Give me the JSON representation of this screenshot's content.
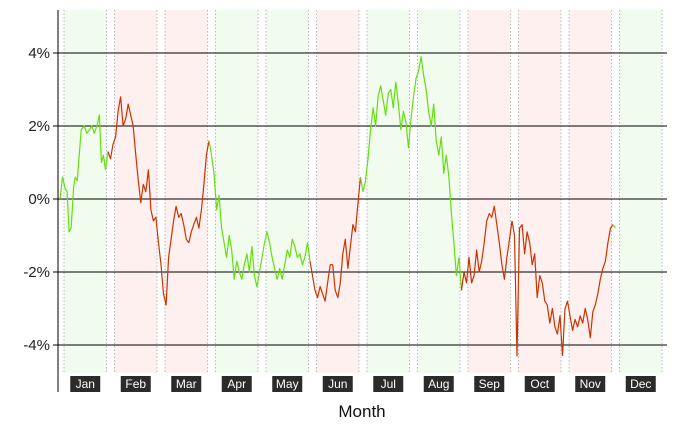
{
  "chart_data": {
    "type": "line",
    "title": "",
    "xlabel": "Month",
    "ylabel": "",
    "ylim": [
      -5.1,
      5.1
    ],
    "y_ticks": [
      -4,
      -2,
      0,
      2,
      4
    ],
    "y_tick_labels": [
      "-4%",
      "-2%",
      "0%",
      "2%",
      "4%"
    ],
    "grid": "horizontal at major ticks",
    "categories": [
      "Jan",
      "Feb",
      "Mar",
      "Apr",
      "May",
      "Jun",
      "Jul",
      "Aug",
      "Sep",
      "Oct",
      "Nov",
      "Dec"
    ],
    "month_trend": [
      "up",
      "down",
      "down",
      "up",
      "up",
      "down",
      "up",
      "up",
      "down",
      "down",
      "down",
      "up"
    ],
    "colors": {
      "up_line": "#66dd11",
      "down_line": "#cc3300",
      "up_band": "#f1fcef",
      "down_band": "#fdf0ef",
      "month_label_bg": "#2b2b2b"
    },
    "series": [
      {
        "values": [
          [
            0.0,
            0.0
          ],
          [
            0.05,
            0.6
          ],
          [
            0.1,
            0.3
          ],
          [
            0.14,
            0.2
          ],
          [
            0.18,
            -0.9
          ],
          [
            0.22,
            -0.8
          ],
          [
            0.27,
            0.3
          ],
          [
            0.3,
            0.6
          ],
          [
            0.34,
            0.5
          ],
          [
            0.38,
            1.2
          ],
          [
            0.42,
            1.9
          ],
          [
            0.48,
            2.0
          ],
          [
            0.53,
            1.8
          ],
          [
            0.58,
            1.9
          ],
          [
            0.63,
            2.0
          ],
          [
            0.68,
            1.8
          ],
          [
            0.73,
            2.0
          ],
          [
            0.78,
            2.3
          ],
          [
            0.82,
            1.0
          ],
          [
            0.86,
            1.2
          ],
          [
            0.9,
            0.8
          ],
          [
            0.95,
            1.3
          ],
          [
            1.0,
            1.1
          ],
          [
            1.05,
            1.5
          ],
          [
            1.1,
            1.7
          ],
          [
            1.15,
            2.4
          ],
          [
            1.2,
            2.8
          ],
          [
            1.25,
            2.0
          ],
          [
            1.3,
            2.2
          ],
          [
            1.35,
            2.6
          ],
          [
            1.4,
            2.3
          ],
          [
            1.45,
            2.0
          ],
          [
            1.5,
            1.2
          ],
          [
            1.55,
            0.5
          ],
          [
            1.6,
            -0.1
          ],
          [
            1.65,
            0.4
          ],
          [
            1.7,
            0.2
          ],
          [
            1.75,
            0.8
          ],
          [
            1.8,
            -0.3
          ],
          [
            1.85,
            -0.6
          ],
          [
            1.9,
            -0.5
          ],
          [
            1.95,
            -1.2
          ],
          [
            2.0,
            -1.8
          ],
          [
            2.05,
            -2.6
          ],
          [
            2.1,
            -2.9
          ],
          [
            2.15,
            -1.6
          ],
          [
            2.2,
            -1.1
          ],
          [
            2.25,
            -0.6
          ],
          [
            2.3,
            -0.2
          ],
          [
            2.35,
            -0.5
          ],
          [
            2.4,
            -0.4
          ],
          [
            2.45,
            -0.7
          ],
          [
            2.5,
            -1.1
          ],
          [
            2.55,
            -1.2
          ],
          [
            2.6,
            -0.9
          ],
          [
            2.65,
            -0.7
          ],
          [
            2.7,
            -0.5
          ],
          [
            2.75,
            -0.8
          ],
          [
            2.8,
            -0.3
          ],
          [
            2.85,
            0.4
          ],
          [
            2.9,
            1.2
          ],
          [
            2.95,
            1.6
          ],
          [
            3.0,
            1.2
          ],
          [
            3.05,
            0.7
          ],
          [
            3.1,
            -0.3
          ],
          [
            3.15,
            0.1
          ],
          [
            3.2,
            -0.8
          ],
          [
            3.25,
            -1.2
          ],
          [
            3.3,
            -1.6
          ],
          [
            3.35,
            -1.0
          ],
          [
            3.4,
            -1.4
          ],
          [
            3.45,
            -2.2
          ],
          [
            3.5,
            -1.7
          ],
          [
            3.55,
            -2.0
          ],
          [
            3.6,
            -2.2
          ],
          [
            3.65,
            -1.8
          ],
          [
            3.7,
            -1.5
          ],
          [
            3.75,
            -2.0
          ],
          [
            3.8,
            -1.3
          ],
          [
            3.85,
            -2.1
          ],
          [
            3.9,
            -2.4
          ],
          [
            3.95,
            -2.0
          ],
          [
            4.0,
            -1.6
          ],
          [
            4.05,
            -1.2
          ],
          [
            4.1,
            -0.9
          ],
          [
            4.15,
            -1.2
          ],
          [
            4.2,
            -1.6
          ],
          [
            4.25,
            -1.9
          ],
          [
            4.3,
            -2.2
          ],
          [
            4.35,
            -1.9
          ],
          [
            4.4,
            -2.2
          ],
          [
            4.45,
            -1.8
          ],
          [
            4.5,
            -1.4
          ],
          [
            4.55,
            -1.6
          ],
          [
            4.6,
            -1.1
          ],
          [
            4.65,
            -1.3
          ],
          [
            4.7,
            -1.6
          ],
          [
            4.75,
            -1.5
          ],
          [
            4.8,
            -1.8
          ],
          [
            4.85,
            -1.6
          ],
          [
            4.9,
            -1.2
          ],
          [
            4.95,
            -1.7
          ],
          [
            5.0,
            -2.1
          ],
          [
            5.05,
            -2.5
          ],
          [
            5.1,
            -2.7
          ],
          [
            5.15,
            -2.4
          ],
          [
            5.2,
            -2.6
          ],
          [
            5.25,
            -2.8
          ],
          [
            5.3,
            -2.3
          ],
          [
            5.35,
            -1.8
          ],
          [
            5.4,
            -1.8
          ],
          [
            5.45,
            -2.5
          ],
          [
            5.5,
            -2.7
          ],
          [
            5.55,
            -2.3
          ],
          [
            5.6,
            -1.5
          ],
          [
            5.65,
            -1.1
          ],
          [
            5.7,
            -1.9
          ],
          [
            5.75,
            -1.3
          ],
          [
            5.8,
            -0.7
          ],
          [
            5.85,
            -0.9
          ],
          [
            5.9,
            -0.1
          ],
          [
            5.95,
            0.6
          ],
          [
            6.0,
            0.2
          ],
          [
            6.05,
            0.5
          ],
          [
            6.1,
            1.1
          ],
          [
            6.15,
            1.9
          ],
          [
            6.2,
            2.5
          ],
          [
            6.25,
            2.0
          ],
          [
            6.3,
            2.8
          ],
          [
            6.35,
            3.1
          ],
          [
            6.4,
            2.7
          ],
          [
            6.45,
            2.3
          ],
          [
            6.5,
            2.9
          ],
          [
            6.55,
            3.0
          ],
          [
            6.6,
            2.5
          ],
          [
            6.65,
            3.2
          ],
          [
            6.7,
            2.6
          ],
          [
            6.75,
            1.9
          ],
          [
            6.8,
            2.4
          ],
          [
            6.85,
            2.1
          ],
          [
            6.9,
            1.4
          ],
          [
            6.95,
            2.2
          ],
          [
            7.0,
            2.8
          ],
          [
            7.05,
            3.3
          ],
          [
            7.1,
            3.5
          ],
          [
            7.15,
            3.9
          ],
          [
            7.2,
            3.4
          ],
          [
            7.25,
            3.0
          ],
          [
            7.3,
            2.4
          ],
          [
            7.35,
            2.0
          ],
          [
            7.4,
            2.6
          ],
          [
            7.45,
            1.6
          ],
          [
            7.5,
            1.2
          ],
          [
            7.55,
            1.7
          ],
          [
            7.6,
            0.7
          ],
          [
            7.65,
            1.2
          ],
          [
            7.7,
            0.6
          ],
          [
            7.75,
            -0.4
          ],
          [
            7.8,
            -1.2
          ],
          [
            7.85,
            -2.1
          ],
          [
            7.9,
            -1.6
          ],
          [
            7.95,
            -2.5
          ],
          [
            8.0,
            -2.0
          ],
          [
            8.05,
            -2.3
          ],
          [
            8.1,
            -1.6
          ],
          [
            8.15,
            -2.3
          ],
          [
            8.2,
            -2.1
          ],
          [
            8.25,
            -1.4
          ],
          [
            8.3,
            -2.0
          ],
          [
            8.35,
            -1.7
          ],
          [
            8.4,
            -1.2
          ],
          [
            8.45,
            -0.6
          ],
          [
            8.5,
            -0.4
          ],
          [
            8.55,
            -0.5
          ],
          [
            8.6,
            -0.2
          ],
          [
            8.65,
            -0.7
          ],
          [
            8.7,
            -1.2
          ],
          [
            8.75,
            -1.8
          ],
          [
            8.8,
            -2.2
          ],
          [
            8.85,
            -1.6
          ],
          [
            8.9,
            -1.1
          ],
          [
            8.95,
            -0.6
          ],
          [
            9.0,
            -1.0
          ],
          [
            9.05,
            -4.3
          ],
          [
            9.1,
            -0.8
          ],
          [
            9.15,
            -0.7
          ],
          [
            9.2,
            -1.5
          ],
          [
            9.25,
            -0.9
          ],
          [
            9.3,
            -1.2
          ],
          [
            9.35,
            -1.8
          ],
          [
            9.4,
            -1.5
          ],
          [
            9.45,
            -2.7
          ],
          [
            9.5,
            -2.1
          ],
          [
            9.55,
            -2.3
          ],
          [
            9.6,
            -2.8
          ],
          [
            9.65,
            -2.9
          ],
          [
            9.7,
            -3.4
          ],
          [
            9.75,
            -3.0
          ],
          [
            9.8,
            -3.5
          ],
          [
            9.85,
            -3.7
          ],
          [
            9.9,
            -3.2
          ],
          [
            9.95,
            -4.3
          ],
          [
            10.0,
            -3.0
          ],
          [
            10.05,
            -2.8
          ],
          [
            10.1,
            -3.2
          ],
          [
            10.15,
            -3.6
          ],
          [
            10.2,
            -3.3
          ],
          [
            10.25,
            -3.5
          ],
          [
            10.3,
            -3.2
          ],
          [
            10.35,
            -3.4
          ],
          [
            10.4,
            -3.0
          ],
          [
            10.45,
            -3.3
          ],
          [
            10.5,
            -3.8
          ],
          [
            10.55,
            -3.1
          ],
          [
            10.6,
            -2.9
          ],
          [
            10.65,
            -2.6
          ],
          [
            10.7,
            -2.2
          ],
          [
            10.75,
            -1.9
          ],
          [
            10.8,
            -1.7
          ],
          [
            10.85,
            -1.2
          ],
          [
            10.9,
            -0.8
          ],
          [
            10.95,
            -0.7
          ],
          [
            11.0,
            -0.8
          ]
        ]
      }
    ]
  }
}
